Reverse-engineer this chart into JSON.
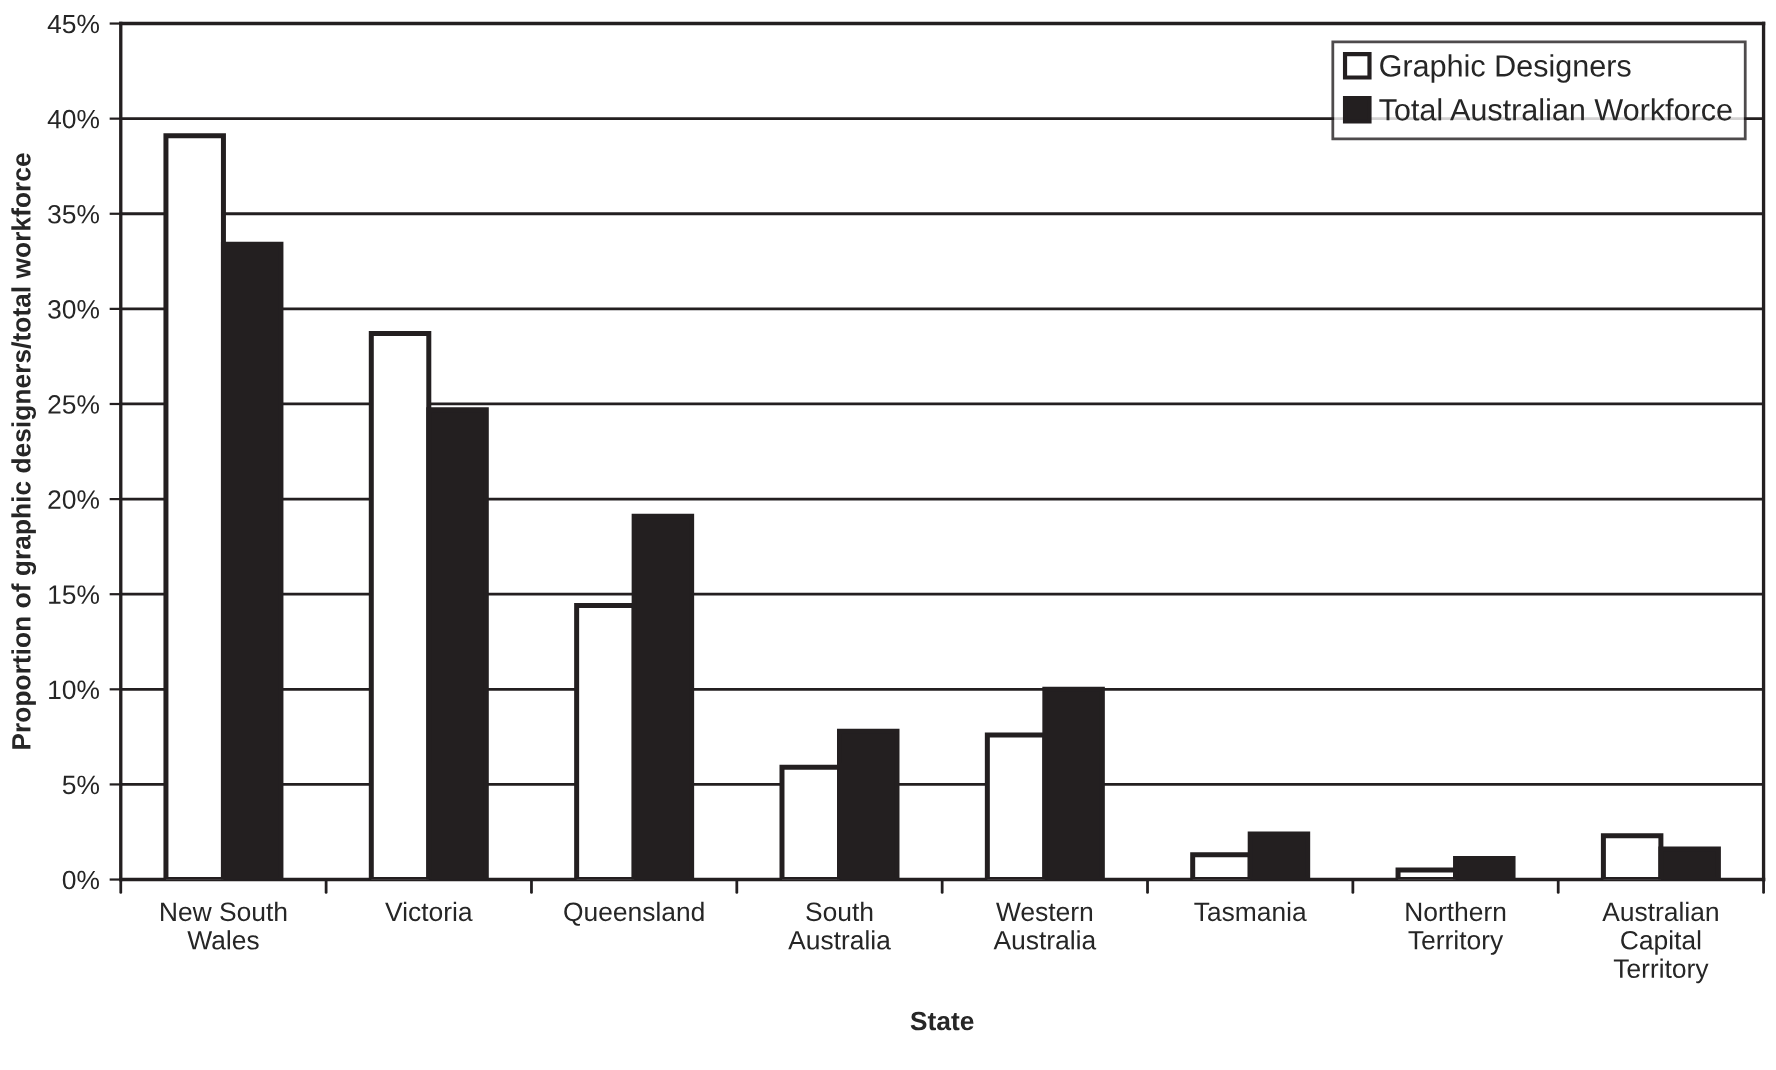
{
  "chart_data": {
    "type": "bar",
    "xlabel": "State",
    "ylabel": "Proportion of graphic designers/total workforce",
    "categories": [
      "New South\nWales",
      "Victoria",
      "Queensland",
      "South\nAustralia",
      "Western\nAustralia",
      "Tasmania",
      "Northern\nTerritory",
      "Australian\nCapital\nTerritory"
    ],
    "series": [
      {
        "name": "Graphic Designers",
        "color": "#ffffff",
        "values": [
          39.1,
          28.7,
          14.4,
          5.9,
          7.6,
          1.3,
          0.5,
          2.3
        ]
      },
      {
        "name": "Total Australian Workforce",
        "color": "#231f20",
        "values": [
          33.4,
          24.7,
          19.1,
          7.8,
          10.0,
          2.4,
          1.1,
          1.6
        ]
      }
    ],
    "ylim": [
      0,
      45
    ],
    "yticks": [
      {
        "value": 0,
        "label": "0%"
      },
      {
        "value": 5,
        "label": "5%"
      },
      {
        "value": 10,
        "label": "10%"
      },
      {
        "value": 15,
        "label": "15%"
      },
      {
        "value": 20,
        "label": "20%"
      },
      {
        "value": 25,
        "label": "25%"
      },
      {
        "value": 30,
        "label": "30%"
      },
      {
        "value": 35,
        "label": "35%"
      },
      {
        "value": 40,
        "label": "40%"
      },
      {
        "value": 45,
        "label": "45%"
      }
    ],
    "grid": "y",
    "legend": "top right"
  }
}
